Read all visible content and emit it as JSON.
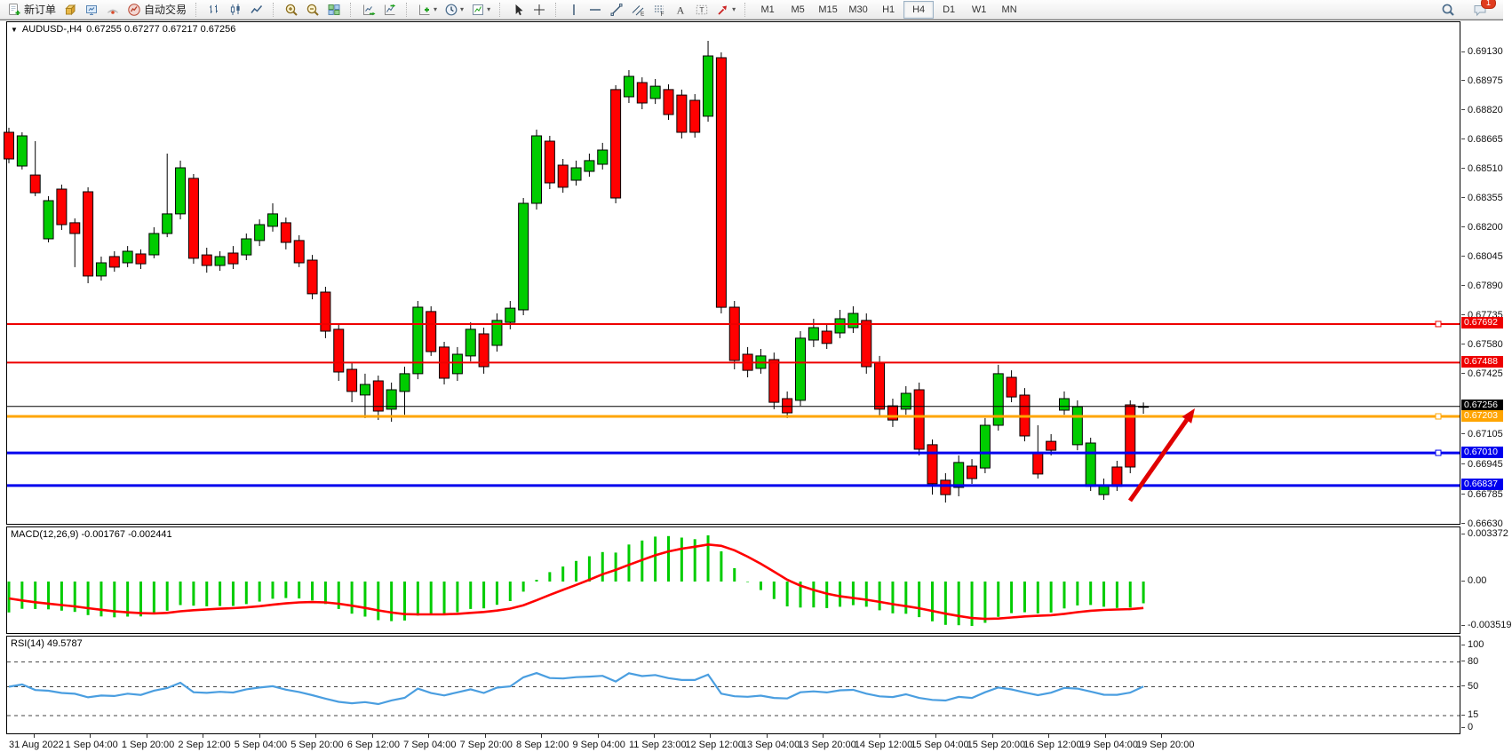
{
  "toolbar": {
    "buttons": [
      {
        "id": "new-order",
        "icon": "new-order-icon",
        "label": "新订单"
      },
      {
        "id": "market-watch",
        "icon": "gold-box-icon"
      },
      {
        "id": "data-window",
        "icon": "monitor-icon"
      },
      {
        "id": "signals",
        "icon": "signal-icon"
      },
      {
        "id": "auto-trading",
        "icon": "autotrade-icon",
        "label": "自动交易"
      },
      {
        "sep": true
      },
      {
        "id": "bar-chart",
        "icon": "bar-chart-icon"
      },
      {
        "id": "candle-chart",
        "icon": "candlestick-icon"
      },
      {
        "id": "line-chart",
        "icon": "line-chart-icon"
      },
      {
        "sep": true
      },
      {
        "id": "zoom-in",
        "icon": "zoom-in-icon"
      },
      {
        "id": "zoom-out",
        "icon": "zoom-out-icon"
      },
      {
        "id": "tile-windows",
        "icon": "tile-windows-icon"
      },
      {
        "sep": true
      },
      {
        "id": "auto-scroll",
        "icon": "auto-scroll-icon"
      },
      {
        "id": "chart-shift",
        "icon": "chart-shift-icon"
      },
      {
        "sep": true
      },
      {
        "id": "indicators",
        "icon": "indicators-icon",
        "dropdown": true
      },
      {
        "id": "periods",
        "icon": "clock-icon",
        "dropdown": true
      },
      {
        "id": "templates",
        "icon": "template-icon",
        "dropdown": true
      },
      {
        "sep": true
      },
      {
        "id": "cursor",
        "icon": "cursor-icon"
      },
      {
        "id": "crosshair",
        "icon": "crosshair-icon"
      },
      {
        "sep": true
      },
      {
        "id": "vertical-line",
        "icon": "vertical-line-icon"
      },
      {
        "id": "horizontal-line",
        "icon": "horizontal-line-icon"
      },
      {
        "id": "trendline",
        "icon": "trendline-icon"
      },
      {
        "id": "equidistant-channel",
        "icon": "channel-icon"
      },
      {
        "id": "fibonacci",
        "icon": "fibonacci-icon"
      },
      {
        "id": "text",
        "icon": "text-icon"
      },
      {
        "id": "text-label",
        "icon": "text-label-icon"
      },
      {
        "id": "arrow-objects",
        "icon": "arrow-objects-icon",
        "dropdown": true
      },
      {
        "sep": true
      }
    ],
    "timeframes": [
      "M1",
      "M5",
      "M15",
      "M30",
      "H1",
      "H4",
      "D1",
      "W1",
      "MN"
    ],
    "active_timeframe": "H4",
    "notification_count": "1"
  },
  "chart": {
    "symbol_period": "AUDUSD-,H4",
    "ohlc_line": "0.67255 0.67277 0.67217 0.67256"
  },
  "chart_data": {
    "type": "candlestick",
    "symbol": "AUDUSD",
    "timeframe": "H4",
    "colors": {
      "bull": "#00cc00",
      "bear": "#ff0000",
      "wick": "#000000",
      "macd_hist": "#00cc00",
      "macd_signal": "#ff0000",
      "rsi_line": "#4a9ee0",
      "arrow": "#e00000"
    },
    "y_ticks": [
      "0.69130",
      "0.68975",
      "0.68820",
      "0.68665",
      "0.68510",
      "0.68355",
      "0.68200",
      "0.68045",
      "0.67890",
      "0.67735",
      "0.67580",
      "0.67425",
      "0.67105",
      "0.66945",
      "0.66785",
      "0.66630"
    ],
    "levels": [
      {
        "price": 0.67692,
        "label": "0.67692",
        "color": "#ee0000",
        "width": 2,
        "handle": true
      },
      {
        "price": 0.67488,
        "label": "0.67488",
        "color": "#ee0000",
        "width": 2,
        "handle": false
      },
      {
        "price": 0.67256,
        "label": "0.67256",
        "color": "#000000",
        "width": 1,
        "handle": false,
        "current": true
      },
      {
        "price": 0.67203,
        "label": "0.67203",
        "color": "#ffa500",
        "width": 3,
        "handle": true
      },
      {
        "price": 0.6701,
        "label": "0.67010",
        "color": "#0000ee",
        "width": 3,
        "handle": true
      },
      {
        "price": 0.66837,
        "label": "0.66837",
        "color": "#0000ee",
        "width": 3,
        "handle": false
      }
    ],
    "candles": [
      [
        0.68707,
        0.68731,
        0.68543,
        0.68566
      ],
      [
        0.68528,
        0.68707,
        0.6851,
        0.68688
      ],
      [
        0.68481,
        0.6866,
        0.68369,
        0.68387
      ],
      [
        0.68143,
        0.68369,
        0.68124,
        0.68345
      ],
      [
        0.68406,
        0.6843,
        0.6819,
        0.68218
      ],
      [
        0.68228,
        0.68251,
        0.67993,
        0.68171
      ],
      [
        0.68392,
        0.68416,
        0.67908,
        0.67946
      ],
      [
        0.67946,
        0.68049,
        0.67922,
        0.68016
      ],
      [
        0.68049,
        0.68077,
        0.67969,
        0.67993
      ],
      [
        0.68016,
        0.68105,
        0.67993,
        0.68077
      ],
      [
        0.68063,
        0.68087,
        0.67983,
        0.68011
      ],
      [
        0.68058,
        0.68204,
        0.6804,
        0.68171
      ],
      [
        0.68171,
        0.68594,
        0.68152,
        0.68275
      ],
      [
        0.68275,
        0.68557,
        0.68246,
        0.68519
      ],
      [
        0.68463,
        0.68486,
        0.68011,
        0.6804
      ],
      [
        0.68058,
        0.68096,
        0.67964,
        0.68002
      ],
      [
        0.68002,
        0.68077,
        0.67974,
        0.68049
      ],
      [
        0.68068,
        0.68105,
        0.67983,
        0.68011
      ],
      [
        0.68058,
        0.68171,
        0.6803,
        0.68143
      ],
      [
        0.68134,
        0.68246,
        0.68105,
        0.68218
      ],
      [
        0.68209,
        0.68331,
        0.68181,
        0.68275
      ],
      [
        0.68228,
        0.68256,
        0.68087,
        0.68124
      ],
      [
        0.68134,
        0.68162,
        0.67993,
        0.68016
      ],
      [
        0.6803,
        0.68058,
        0.67823,
        0.67852
      ],
      [
        0.67861,
        0.67889,
        0.67617,
        0.67654
      ],
      [
        0.67664,
        0.67692,
        0.67391,
        0.67438
      ],
      [
        0.67452,
        0.67485,
        0.67278,
        0.67335
      ],
      [
        0.67316,
        0.67429,
        0.67194,
        0.67372
      ],
      [
        0.67391,
        0.67419,
        0.67184,
        0.67231
      ],
      [
        0.67241,
        0.67382,
        0.67175,
        0.67344
      ],
      [
        0.67335,
        0.67466,
        0.67212,
        0.67429
      ],
      [
        0.67429,
        0.67814,
        0.674,
        0.67781
      ],
      [
        0.67758,
        0.67786,
        0.67523,
        0.67546
      ],
      [
        0.6757,
        0.67598,
        0.67372,
        0.67405
      ],
      [
        0.67429,
        0.6757,
        0.67391,
        0.67532
      ],
      [
        0.67523,
        0.67701,
        0.67494,
        0.67664
      ],
      [
        0.6764,
        0.67673,
        0.67429,
        0.67466
      ],
      [
        0.67579,
        0.67748,
        0.67546,
        0.67711
      ],
      [
        0.67701,
        0.67814,
        0.67664,
        0.67776
      ],
      [
        0.67767,
        0.68359,
        0.67739,
        0.68331
      ],
      [
        0.68331,
        0.68721,
        0.68298,
        0.68688
      ],
      [
        0.6866,
        0.68688,
        0.68406,
        0.68439
      ],
      [
        0.68533,
        0.68566,
        0.68387,
        0.68416
      ],
      [
        0.68453,
        0.68557,
        0.68425,
        0.68519
      ],
      [
        0.685,
        0.68594,
        0.68472,
        0.68557
      ],
      [
        0.68538,
        0.68651,
        0.6851,
        0.68613
      ],
      [
        0.68933,
        0.68956,
        0.68331,
        0.68359
      ],
      [
        0.68895,
        0.69036,
        0.68862,
        0.69003
      ],
      [
        0.6897,
        0.68998,
        0.68829,
        0.68862
      ],
      [
        0.68886,
        0.68989,
        0.68857,
        0.68951
      ],
      [
        0.68933,
        0.68961,
        0.68773,
        0.68801
      ],
      [
        0.68904,
        0.68933,
        0.68674,
        0.68707
      ],
      [
        0.68876,
        0.68909,
        0.68679,
        0.68707
      ],
      [
        0.68792,
        0.69191,
        0.68763,
        0.69111
      ],
      [
        0.69102,
        0.6913,
        0.67748,
        0.67781
      ],
      [
        0.67781,
        0.67814,
        0.67452,
        0.67499
      ],
      [
        0.67532,
        0.6757,
        0.6741,
        0.67447
      ],
      [
        0.67457,
        0.6756,
        0.67429,
        0.67523
      ],
      [
        0.67504,
        0.67541,
        0.67241,
        0.67278
      ],
      [
        0.67297,
        0.67335,
        0.67194,
        0.67222
      ],
      [
        0.67288,
        0.67654,
        0.67259,
        0.67617
      ],
      [
        0.67607,
        0.6772,
        0.6757,
        0.67673
      ],
      [
        0.67654,
        0.67692,
        0.6756,
        0.67589
      ],
      [
        0.67645,
        0.67767,
        0.67617,
        0.6772
      ],
      [
        0.67673,
        0.67786,
        0.67645,
        0.67748
      ],
      [
        0.67711,
        0.67748,
        0.67429,
        0.67466
      ],
      [
        0.67485,
        0.67523,
        0.67203,
        0.67241
      ],
      [
        0.67259,
        0.67297,
        0.67147,
        0.67184
      ],
      [
        0.67241,
        0.67363,
        0.67212,
        0.67325
      ],
      [
        0.67344,
        0.67382,
        0.66996,
        0.67029
      ],
      [
        0.67053,
        0.67081,
        0.66789,
        0.66846
      ],
      [
        0.66865,
        0.66902,
        0.66747,
        0.66789
      ],
      [
        0.66827,
        0.66996,
        0.6678,
        0.66959
      ],
      [
        0.6694,
        0.66977,
        0.66846,
        0.66874
      ],
      [
        0.6693,
        0.67194,
        0.66902,
        0.67156
      ],
      [
        0.67156,
        0.67476,
        0.67128,
        0.67429
      ],
      [
        0.6741,
        0.67447,
        0.67278,
        0.67306
      ],
      [
        0.67316,
        0.67353,
        0.67071,
        0.671
      ],
      [
        0.67006,
        0.67156,
        0.66874,
        0.66898
      ],
      [
        0.67071,
        0.67109,
        0.66996,
        0.67024
      ],
      [
        0.67236,
        0.67335,
        0.67212,
        0.67297
      ],
      [
        0.67053,
        0.67288,
        0.67024,
        0.67254
      ],
      [
        0.66832,
        0.6709,
        0.66808,
        0.67062
      ],
      [
        0.66789,
        0.66874,
        0.66761,
        0.66841
      ],
      [
        0.66935,
        0.66968,
        0.66808,
        0.66832
      ],
      [
        0.67264,
        0.67288,
        0.66902,
        0.66935
      ],
      [
        0.67255,
        0.67277,
        0.67217,
        0.67256
      ]
    ],
    "indicators": {
      "macd": {
        "label": "MACD(12,26,9) -0.001767 -0.002441",
        "params": [
          12,
          26,
          9
        ],
        "values_shown": [
          "-0.001767",
          "-0.002441"
        ],
        "axis_labels": [
          "0.003372",
          "0.00",
          "-0.003519"
        ]
      },
      "rsi": {
        "label": "RSI(14) 49.5787",
        "period": 14,
        "value_shown": "49.5787",
        "axis_labels": [
          "100",
          "80",
          "50",
          "15",
          "0"
        ],
        "dashed_levels": [
          80,
          50,
          15
        ]
      }
    },
    "time_labels": [
      "31 Aug 2022",
      "1 Sep 04:00",
      "1 Sep 20:00",
      "2 Sep 12:00",
      "5 Sep 04:00",
      "5 Sep 20:00",
      "6 Sep 12:00",
      "7 Sep 04:00",
      "7 Sep 20:00",
      "8 Sep 12:00",
      "9 Sep 04:00",
      "11 Sep 23:00",
      "12 Sep 12:00",
      "13 Sep 04:00",
      "13 Sep 20:00",
      "14 Sep 12:00",
      "15 Sep 04:00",
      "15 Sep 20:00",
      "16 Sep 12:00",
      "19 Sep 04:00",
      "19 Sep 20:00"
    ],
    "annotations": [
      {
        "type": "arrow",
        "x1": 1264,
        "y1": 539,
        "x2": 1337,
        "y2": 435,
        "color": "#e00000",
        "width": 5
      }
    ]
  }
}
